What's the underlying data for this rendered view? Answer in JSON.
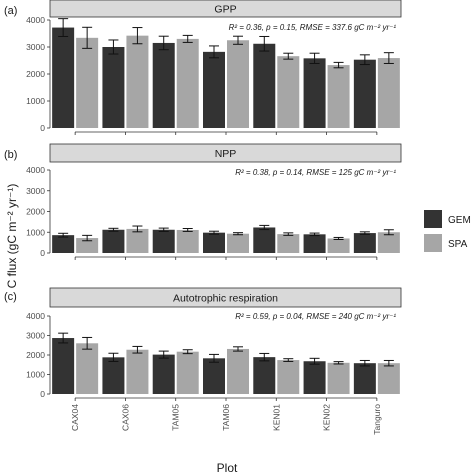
{
  "chart_data": {
    "type": "bar",
    "categories": [
      "CAX04",
      "CAX06",
      "TAM05",
      "TAM06",
      "KEN01",
      "KEN02",
      "Tanguro"
    ],
    "xlabel": "Plot",
    "ylabel": "C flux (gC m⁻² yr⁻¹)",
    "legend": {
      "placement": "right",
      "entries": [
        {
          "name": "GEM",
          "color": "#333333"
        },
        {
          "name": "SPA",
          "color": "#a6a6a6"
        }
      ]
    },
    "ylim": [
      0,
      4000
    ],
    "yticks": [
      0,
      1000,
      2000,
      3000,
      4000
    ],
    "panels": [
      {
        "tag": "(a)",
        "title": "GPP",
        "stat_text": "R² = 0.36, p = 0.15, RMSE = 337.6 gC m⁻² yr⁻¹",
        "series": [
          {
            "name": "GEM",
            "values": [
              3720,
              3000,
              3150,
              2820,
              3120,
              2580,
              2530
            ],
            "errors": [
              330,
              260,
              250,
              220,
              270,
              190,
              180
            ]
          },
          {
            "name": "SPA",
            "values": [
              3340,
              3420,
              3300,
              3250,
              2660,
              2330,
              2590
            ],
            "errors": [
              390,
              300,
              130,
              150,
              110,
              100,
              200
            ]
          }
        ]
      },
      {
        "tag": "(b)",
        "title": "NPP",
        "stat_text": "R² = 0.38, p = 0.14, RMSE = 125 gC m⁻² yr⁻¹",
        "series": [
          {
            "name": "GEM",
            "values": [
              860,
              1120,
              1120,
              980,
              1230,
              900,
              960
            ],
            "errors": [
              90,
              70,
              80,
              70,
              100,
              60,
              60
            ]
          },
          {
            "name": "SPA",
            "values": [
              720,
              1160,
              1110,
              930,
              910,
              700,
              1000
            ],
            "errors": [
              130,
              140,
              70,
              50,
              60,
              50,
              120
            ]
          }
        ]
      },
      {
        "tag": "(c)",
        "title": "Autotrophic respiration",
        "stat_text": "R² = 0.59, p = 0.04, RMSE = 240 gC m⁻² yr⁻¹",
        "series": [
          {
            "name": "GEM",
            "values": [
              2870,
              1880,
              2020,
              1830,
              1890,
              1680,
              1580
            ],
            "errors": [
              250,
              210,
              180,
              200,
              190,
              150,
              140
            ]
          },
          {
            "name": "SPA",
            "values": [
              2600,
              2270,
              2170,
              2310,
              1740,
              1600,
              1580
            ],
            "errors": [
              300,
              170,
              100,
              110,
              70,
              60,
              140
            ]
          }
        ]
      }
    ]
  }
}
